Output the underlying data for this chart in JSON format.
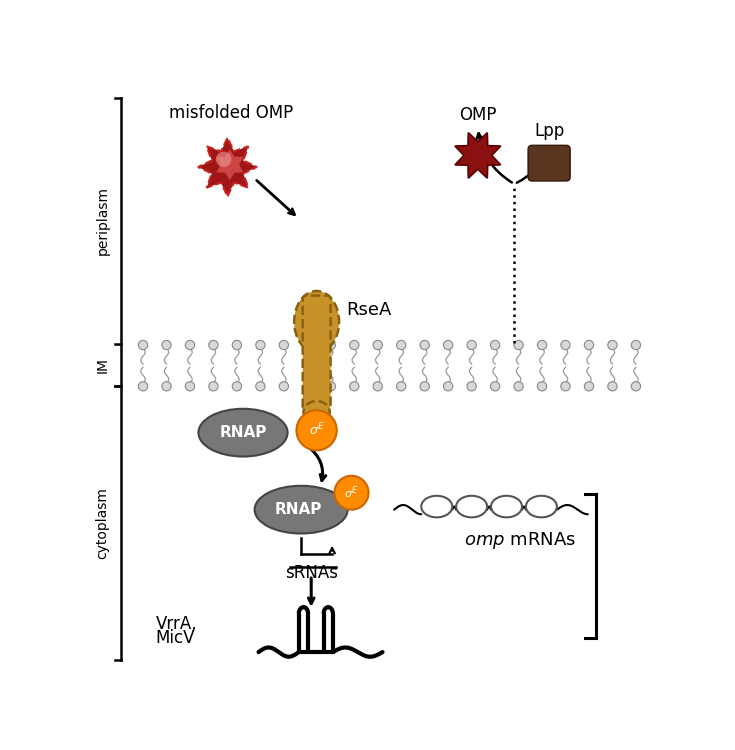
{
  "bg_color": "#ffffff",
  "sigma_color": "#ff8c00",
  "rnap_color": "#777777",
  "omp_color": "#8b1010",
  "lpp_color": "#5a3520",
  "misfolded_omp_color": "#a01515",
  "rsea_color": "#c8922a",
  "membrane_head_color": "#d8d8d8",
  "membrane_tail_color": "#aaaaaa",
  "label_periplasm": "periplasm",
  "label_im": "IM",
  "label_cytoplasm": "cytoplasm",
  "label_misfolded": "misfolded OMP",
  "label_rsea": "RseA",
  "label_omp": "OMP",
  "label_lpp": "Lpp",
  "label_rnap": "RNAP",
  "label_srnas": "sRNAs",
  "label_vrra_line1": "VrrA,",
  "label_vrra_line2": "MicV"
}
